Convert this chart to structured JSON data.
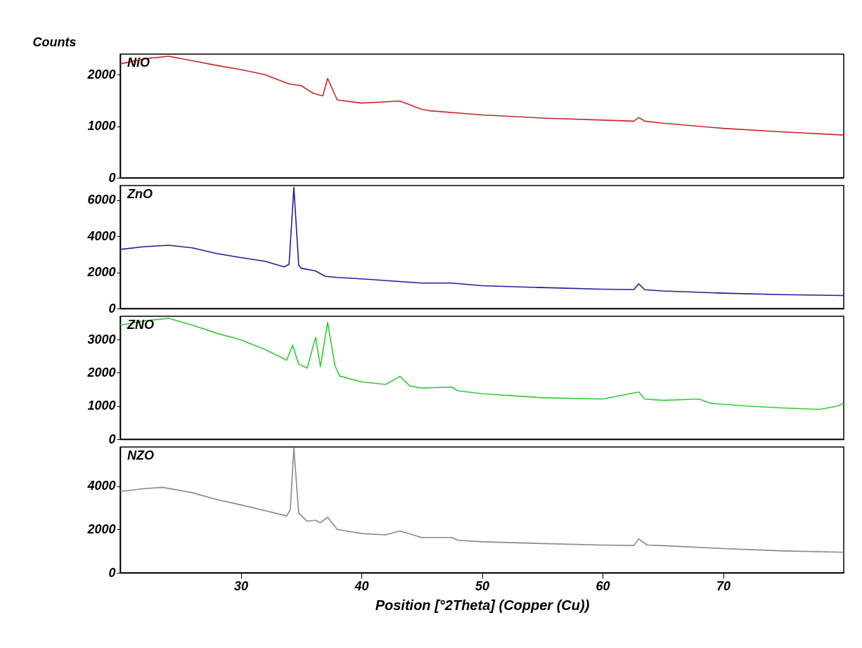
{
  "chart_data": [
    {
      "type": "line",
      "ylabel": "Counts",
      "xlim": [
        20,
        80
      ],
      "xticks": [
        30,
        40,
        50,
        60,
        70
      ],
      "ylim": [
        0,
        2400
      ],
      "yticks": [
        0,
        1000,
        2000
      ],
      "tick_labels": "y",
      "grid": false,
      "series": [
        {
          "name": "NiO",
          "color": "#c8282a",
          "x": [
            20,
            22,
            24,
            26,
            28,
            30,
            32,
            34,
            35,
            36,
            36.8,
            37.2,
            38,
            40,
            43.2,
            45,
            45.7,
            50,
            55,
            60,
            62.6,
            63,
            63.5,
            65,
            70,
            75,
            80
          ],
          "values": [
            2210,
            2310,
            2360,
            2270,
            2180,
            2100,
            2000,
            1820,
            1790,
            1640,
            1590,
            1930,
            1510,
            1450,
            1490,
            1330,
            1300,
            1220,
            1160,
            1120,
            1100,
            1170,
            1100,
            1060,
            960,
            890,
            830
          ]
        }
      ]
    },
    {
      "type": "line",
      "xlim": [
        20,
        80
      ],
      "xticks": [
        30,
        40,
        50,
        60,
        70
      ],
      "ylim": [
        0,
        6800
      ],
      "yticks": [
        0,
        2000,
        4000,
        6000
      ],
      "tick_labels": "y",
      "grid": false,
      "series": [
        {
          "name": "ZnO",
          "color": "#1f1f9a",
          "x": [
            20,
            22,
            24,
            26,
            28,
            30,
            32,
            33.6,
            34.0,
            34.4,
            34.8,
            35,
            36.2,
            37,
            38,
            40,
            45,
            47.5,
            50,
            55,
            60,
            62.6,
            63,
            63.5,
            65,
            70,
            75,
            80
          ],
          "values": [
            3270,
            3420,
            3500,
            3350,
            3040,
            2820,
            2610,
            2300,
            2450,
            6700,
            2400,
            2230,
            2080,
            1780,
            1720,
            1640,
            1410,
            1410,
            1260,
            1160,
            1070,
            1050,
            1370,
            1040,
            970,
            850,
            770,
            720
          ]
        }
      ]
    },
    {
      "type": "line",
      "xlim": [
        20,
        80
      ],
      "xticks": [
        30,
        40,
        50,
        60,
        70
      ],
      "ylim": [
        0,
        3700
      ],
      "yticks": [
        0,
        1000,
        2000,
        3000
      ],
      "tick_labels": "y",
      "grid": false,
      "series": [
        {
          "name": "ZNO",
          "color": "#33cc33",
          "x": [
            20,
            22,
            24,
            26,
            28,
            30,
            32,
            33.8,
            34.3,
            34.8,
            35.5,
            36.2,
            36.6,
            37.2,
            37.8,
            38.2,
            40,
            42,
            43.2,
            44,
            45,
            47.5,
            48,
            50,
            55,
            60,
            63,
            63.5,
            65,
            68,
            69,
            72,
            75,
            78,
            79.5,
            80
          ],
          "values": [
            3430,
            3560,
            3640,
            3430,
            3190,
            2990,
            2700,
            2380,
            2830,
            2260,
            2140,
            3070,
            2180,
            3520,
            2220,
            1900,
            1730,
            1650,
            1890,
            1610,
            1540,
            1570,
            1460,
            1370,
            1250,
            1210,
            1420,
            1210,
            1170,
            1210,
            1080,
            1000,
            940,
            900,
            1000,
            1090
          ]
        }
      ]
    },
    {
      "type": "line",
      "xlabel": "Position [°2Theta] (Copper (Cu))",
      "xlim": [
        20,
        80
      ],
      "xticks": [
        30,
        40,
        50,
        60,
        70
      ],
      "ylim": [
        0,
        5800
      ],
      "yticks": [
        0,
        2000,
        4000
      ],
      "grid": false,
      "series": [
        {
          "name": "NZO",
          "color": "#888888",
          "x": [
            20,
            22,
            23.5,
            26,
            28,
            30,
            32,
            33.8,
            34.1,
            34.4,
            34.8,
            35.5,
            36.2,
            36.6,
            37.2,
            38,
            40,
            42,
            43.2,
            45,
            47.5,
            48,
            50,
            55,
            60,
            62.6,
            63,
            63.7,
            65,
            70,
            75,
            80
          ],
          "values": [
            3750,
            3880,
            3940,
            3690,
            3380,
            3130,
            2870,
            2620,
            2900,
            5750,
            2750,
            2380,
            2420,
            2310,
            2560,
            2000,
            1810,
            1750,
            1930,
            1630,
            1630,
            1500,
            1430,
            1350,
            1280,
            1260,
            1560,
            1280,
            1250,
            1120,
            1010,
            950
          ]
        }
      ]
    }
  ]
}
